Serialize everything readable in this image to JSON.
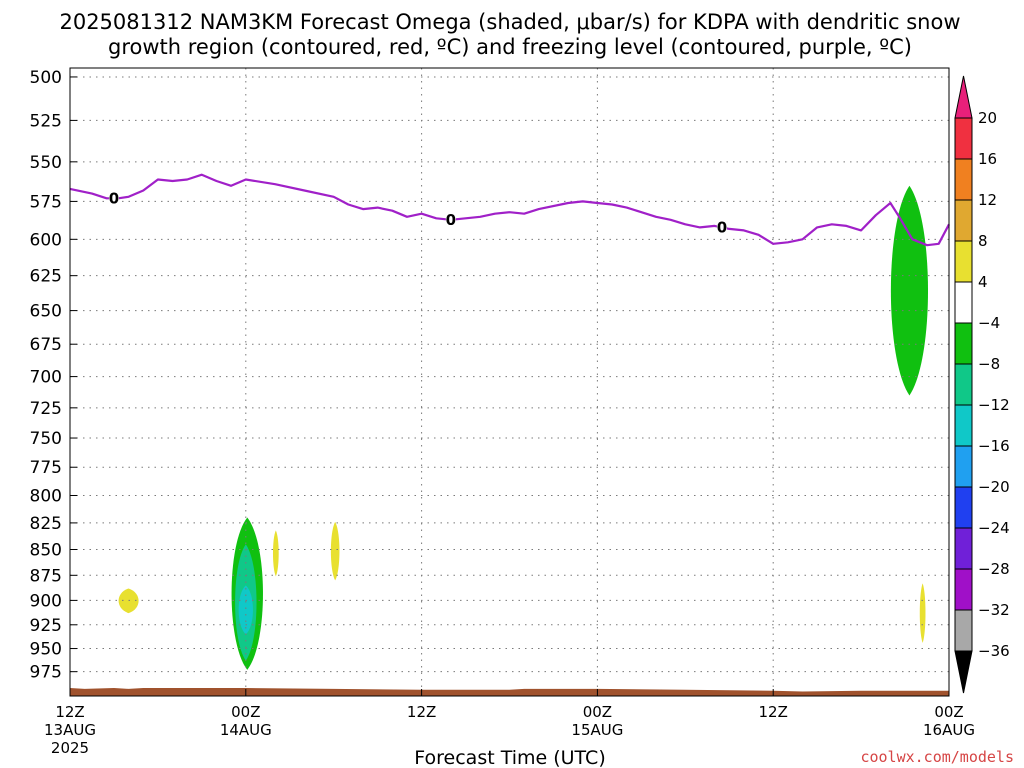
{
  "title": {
    "line1": "2025081312 NAM3KM Forecast Omega (shaded, μbar/s) for KDPA with dendritic snow",
    "line2": "growth region (contoured, red, ºC) and freezing level (contoured, purple, ºC)"
  },
  "credit": "coolwx.com/models",
  "colors": {
    "freezing_line": "#a020c8",
    "terrain": "#a0522d",
    "grid": "#7a7a7a"
  },
  "chart_data": {
    "type": "time-height cross section",
    "xlabel": "Forecast Time (UTC)",
    "ylabel": "",
    "x_ticks": [
      {
        "hour": 0,
        "line1": "12Z",
        "line2": "13AUG",
        "line3": "2025"
      },
      {
        "hour": 12,
        "line1": "00Z",
        "line2": "14AUG",
        "line3": ""
      },
      {
        "hour": 24,
        "line1": "12Z",
        "line2": "",
        "line3": ""
      },
      {
        "hour": 36,
        "line1": "00Z",
        "line2": "15AUG",
        "line3": ""
      },
      {
        "hour": 48,
        "line1": "12Z",
        "line2": "",
        "line3": ""
      },
      {
        "hour": 60,
        "line1": "00Z",
        "line2": "16AUG",
        "line3": ""
      }
    ],
    "xlim": [
      0,
      60
    ],
    "y_axis": "pressure (hPa), log scale, inverted",
    "y_ticks": [
      500,
      525,
      550,
      575,
      600,
      625,
      650,
      675,
      700,
      725,
      750,
      775,
      800,
      825,
      850,
      875,
      900,
      925,
      950,
      975
    ],
    "ylim": [
      1002,
      495
    ],
    "grid": true,
    "colorbar": {
      "labels": [
        "20",
        "16",
        "12",
        "8",
        "4",
        "−4",
        "−8",
        "−12",
        "−16",
        "−20",
        "−24",
        "−28",
        "−32",
        "−36"
      ],
      "bins": [
        {
          "from": 16,
          "to": 20,
          "color": "#f03040"
        },
        {
          "from": 12,
          "to": 16,
          "color": "#f08020"
        },
        {
          "from": 8,
          "to": 12,
          "color": "#e0a830"
        },
        {
          "from": 4,
          "to": 8,
          "color": "#e8e030"
        },
        {
          "from": -4,
          "to": 4,
          "color": "#ffffff"
        },
        {
          "from": -8,
          "to": -4,
          "color": "#10c010"
        },
        {
          "from": -12,
          "to": -8,
          "color": "#10c888"
        },
        {
          "from": -16,
          "to": -12,
          "color": "#10c8c8"
        },
        {
          "from": -20,
          "to": -16,
          "color": "#20a0f0"
        },
        {
          "from": -24,
          "to": -20,
          "color": "#2040f0"
        },
        {
          "from": -28,
          "to": -24,
          "color": "#7020d8"
        },
        {
          "from": -32,
          "to": -28,
          "color": "#a010c8"
        },
        {
          "from": -36,
          "to": -32,
          "color": "#a8a8a8"
        }
      ],
      "top_arrow_color": "#e8207a",
      "bottom_arrow_color": "#000000"
    },
    "freezing_level": {
      "label": "0",
      "points": [
        [
          0,
          567
        ],
        [
          1.5,
          570
        ],
        [
          2.5,
          573
        ],
        [
          3.3,
          573
        ],
        [
          4,
          572
        ],
        [
          5,
          568
        ],
        [
          6,
          561
        ],
        [
          7,
          562
        ],
        [
          8,
          561
        ],
        [
          9,
          558
        ],
        [
          10,
          562
        ],
        [
          11,
          565
        ],
        [
          12,
          561
        ],
        [
          14,
          564
        ],
        [
          16,
          568
        ],
        [
          18,
          572
        ],
        [
          19,
          577
        ],
        [
          20,
          580
        ],
        [
          21,
          579
        ],
        [
          22,
          581
        ],
        [
          23,
          585
        ],
        [
          24,
          583
        ],
        [
          25,
          586
        ],
        [
          26,
          587
        ],
        [
          27,
          586
        ],
        [
          28,
          585
        ],
        [
          29,
          583
        ],
        [
          30,
          582
        ],
        [
          31,
          583
        ],
        [
          32,
          580
        ],
        [
          34,
          576
        ],
        [
          35,
          575
        ],
        [
          36,
          576
        ],
        [
          37,
          577
        ],
        [
          38,
          579
        ],
        [
          39,
          582
        ],
        [
          40,
          585
        ],
        [
          41,
          587
        ],
        [
          42,
          590
        ],
        [
          43,
          592
        ],
        [
          44,
          591
        ],
        [
          45,
          593
        ],
        [
          46,
          594
        ],
        [
          47,
          597
        ],
        [
          48,
          603
        ],
        [
          49,
          602
        ],
        [
          50,
          600
        ],
        [
          51,
          592
        ],
        [
          52,
          590
        ],
        [
          53,
          591
        ],
        [
          54,
          594
        ],
        [
          55,
          584
        ],
        [
          56,
          576
        ],
        [
          56.6,
          585
        ],
        [
          57.5,
          600
        ],
        [
          58.5,
          604
        ],
        [
          59.3,
          603
        ],
        [
          60,
          590
        ]
      ],
      "label_hours": [
        3,
        26,
        44.5
      ]
    },
    "terrain": {
      "color": "#a0522d",
      "points": [
        [
          0,
          993
        ],
        [
          1,
          994
        ],
        [
          3,
          993
        ],
        [
          4,
          994
        ],
        [
          5,
          993
        ],
        [
          8,
          993
        ],
        [
          12,
          993
        ],
        [
          18,
          994
        ],
        [
          24,
          995
        ],
        [
          30,
          995
        ],
        [
          31,
          994
        ],
        [
          36,
          994
        ],
        [
          42,
          995
        ],
        [
          48,
          996
        ],
        [
          50,
          997
        ],
        [
          54,
          996
        ],
        [
          60,
          996
        ]
      ]
    },
    "omega_regions": [
      {
        "value_range": [
          -8,
          -4
        ],
        "color": "#10c010",
        "hour_center": 12.1,
        "hour_halfwidth": 1.1,
        "p_top": 820,
        "p_bottom": 973
      },
      {
        "value_range": [
          -12,
          -8
        ],
        "color": "#10c888",
        "hour_center": 12.0,
        "hour_halfwidth": 0.75,
        "p_top": 845,
        "p_bottom": 963
      },
      {
        "value_range": [
          -16,
          -12
        ],
        "color": "#10c8c8",
        "hour_center": 12.0,
        "hour_halfwidth": 0.5,
        "p_top": 885,
        "p_bottom": 935
      },
      {
        "value_range": [
          4,
          8
        ],
        "color": "#e8e030",
        "hour_center": 4.0,
        "hour_halfwidth": 0.7,
        "p_top": 888,
        "p_bottom": 913
      },
      {
        "value_range": [
          4,
          8
        ],
        "color": "#e8e030",
        "hour_center": 14.05,
        "hour_halfwidth": 0.2,
        "p_top": 832,
        "p_bottom": 876
      },
      {
        "value_range": [
          4,
          8
        ],
        "color": "#e8e030",
        "hour_center": 18.1,
        "hour_halfwidth": 0.3,
        "p_top": 824,
        "p_bottom": 880
      },
      {
        "value_range": [
          4,
          8
        ],
        "color": "#e8e030",
        "hour_center": 58.2,
        "hour_halfwidth": 0.2,
        "p_top": 883,
        "p_bottom": 944
      },
      {
        "value_range": [
          -8,
          -4
        ],
        "color": "#10c010",
        "hour_center": 57.3,
        "hour_halfwidth": 1.3,
        "p_top": 565,
        "p_bottom": 715
      }
    ]
  }
}
